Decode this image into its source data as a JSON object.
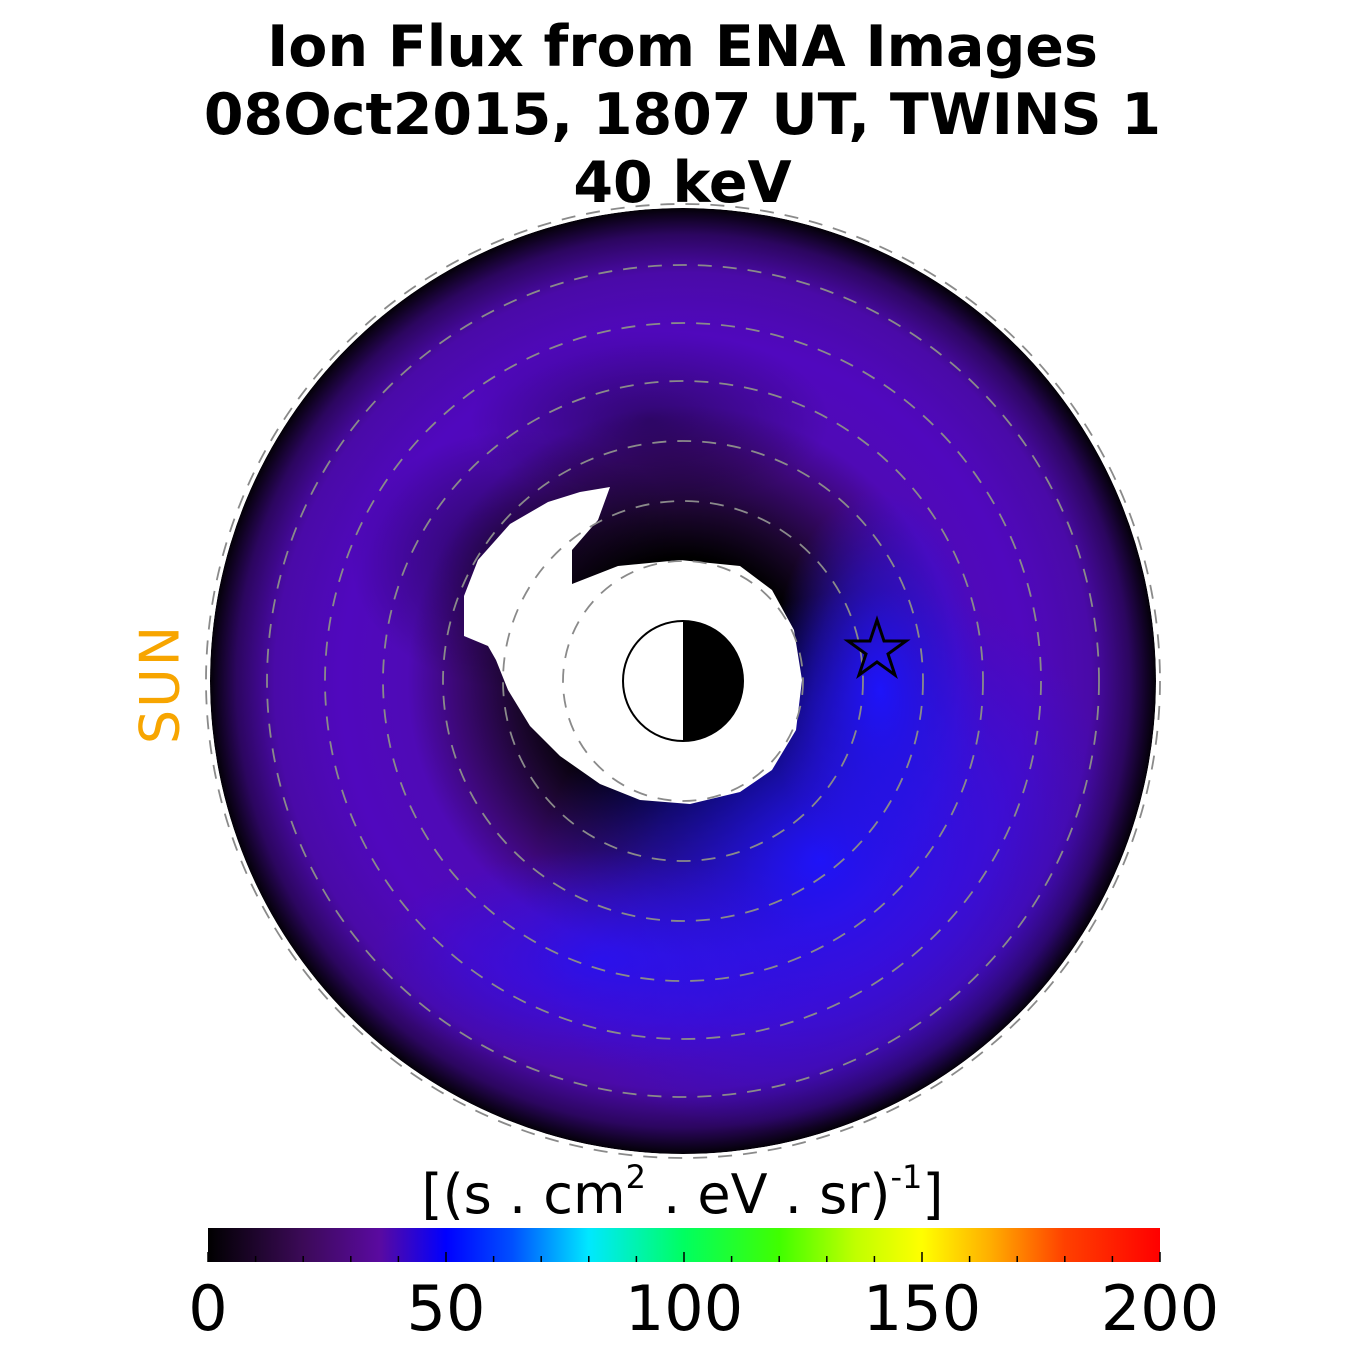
{
  "title": {
    "line1": "Ion Flux from  ENA Images",
    "line2": "08Oct2015, 1807 UT,  TWINS 1",
    "line3": "40 keV"
  },
  "sun_label": "SUN",
  "colorbar": {
    "units_base": "[(s . cm",
    "units_sup1": "2",
    "units_mid": " . eV . sr)",
    "units_sup2": "-1",
    "units_end": "]",
    "range": [
      0,
      200
    ],
    "tick_labels": [
      "0",
      "50",
      "100",
      "150",
      "200"
    ],
    "colormap": [
      "#000000",
      "#5a0a8c",
      "#0000ff",
      "#00ffff",
      "#00ff00",
      "#ffff00",
      "#ff8000",
      "#ff0000"
    ]
  },
  "chart_data": {
    "type": "heatmap",
    "projection": "polar equatorial map, Sun to the left",
    "value_range": [
      0,
      200
    ],
    "dashed_rings": 8,
    "typical_flux": {
      "outer_ring": 25,
      "inner_edge": 0,
      "dusk_enhancement_peak": 50
    },
    "markers": [
      "satellite-position-star",
      "earth-day-night-disk"
    ]
  }
}
